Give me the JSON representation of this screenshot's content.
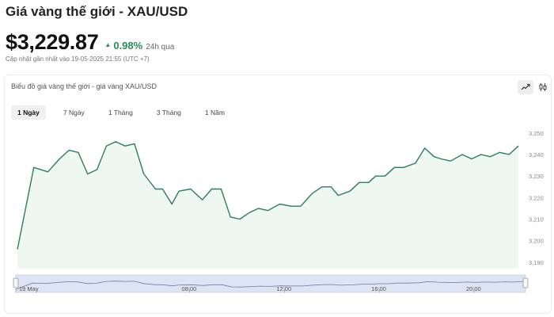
{
  "header": {
    "title": "Giá vàng thế giới - XAU/USD",
    "price": "$3,229.87",
    "change_pct": "0.98%",
    "change_period": "24h qua",
    "updated": "Cập nhật gần nhất vào 19-05-2025 21:55 (UTC +7)"
  },
  "card": {
    "title": "Biểu đồ giá vàng thế giới - giá vàng XAU/USD",
    "view_toggle": [
      "line-chart-icon",
      "candlestick-icon"
    ],
    "tabs": [
      {
        "label": "1 Ngày",
        "active": true
      },
      {
        "label": "7 Ngày",
        "active": false
      },
      {
        "label": "1 Tháng",
        "active": false
      },
      {
        "label": "3 Tháng",
        "active": false
      },
      {
        "label": "1 Năm",
        "active": false
      }
    ]
  },
  "colors": {
    "line": "#2e7d5b",
    "area": "#eef7f1",
    "positive": "#2e8b57"
  },
  "chart_data": {
    "type": "area",
    "y_ticks": [
      3190,
      3200,
      3210,
      3220,
      3230,
      3240,
      3250
    ],
    "ylim": [
      3187,
      3254
    ],
    "xlim": [
      0,
      21.5
    ],
    "y_axis_side": "right",
    "grid": false,
    "legend": "none",
    "x": [
      0,
      0.7,
      1.3,
      1.8,
      2.2,
      2.6,
      3.0,
      3.4,
      3.8,
      4.2,
      4.6,
      5.0,
      5.4,
      5.9,
      6.2,
      6.6,
      6.9,
      7.4,
      7.9,
      8.3,
      8.7,
      9.1,
      9.5,
      9.9,
      10.3,
      10.7,
      11.2,
      11.7,
      12.1,
      12.6,
      13.0,
      13.4,
      13.7,
      14.2,
      14.6,
      15.0,
      15.3,
      15.7,
      16.1,
      16.5,
      17.0,
      17.4,
      17.8,
      18.1,
      18.5,
      19.0,
      19.4,
      19.8,
      20.2,
      20.6,
      21.0,
      21.4
    ],
    "values": [
      3196,
      3234,
      3232,
      3238,
      3242,
      3241,
      3231,
      3233,
      3244,
      3246,
      3244,
      3245,
      3231,
      3224,
      3224,
      3217,
      3223,
      3224,
      3219,
      3224,
      3224,
      3211,
      3210,
      3213,
      3215,
      3214,
      3217,
      3216,
      3216,
      3222,
      3225,
      3225,
      3221,
      3223,
      3227,
      3227,
      3230,
      3230,
      3234,
      3234,
      3236,
      3243,
      3239,
      3238,
      3237,
      3240,
      3238,
      3240,
      3239,
      3241,
      3240,
      3244
    ],
    "navigator": {
      "x_labels": [
        "19 May",
        "08:00",
        "12:00",
        "16:00",
        "20:00"
      ],
      "x_label_positions": [
        0,
        7.33,
        11.33,
        15.33,
        19.33
      ]
    }
  }
}
